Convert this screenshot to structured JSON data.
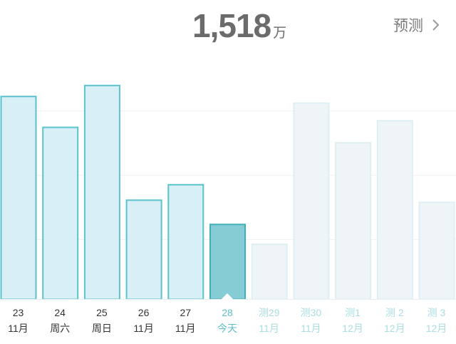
{
  "header": {
    "total_value": "1,518",
    "total_unit": "万",
    "forecast_label": "预测"
  },
  "colors": {
    "past_fill": "#d8eff6",
    "past_stroke": "#5cc2cc",
    "today_fill": "#86ccd4",
    "today_stroke": "#3fb0ba",
    "forecast_fill": "#eff5f7",
    "forecast_stroke": "#ddeff3",
    "grid": "#eef2f3"
  },
  "chart_data": {
    "type": "bar",
    "title": "",
    "xlabel": "",
    "ylabel": "",
    "ylim": [
      0,
      100
    ],
    "categories": [
      {
        "line1": "23",
        "line2": "11月",
        "value": 92,
        "kind": "past"
      },
      {
        "line1": "24",
        "line2": "周六",
        "value": 78,
        "kind": "past"
      },
      {
        "line1": "25",
        "line2": "周日",
        "value": 97,
        "kind": "past"
      },
      {
        "line1": "26",
        "line2": "11月",
        "value": 45,
        "kind": "past"
      },
      {
        "line1": "27",
        "line2": "11月",
        "value": 52,
        "kind": "past"
      },
      {
        "line1": "28",
        "line2": "今天",
        "value": 34,
        "kind": "today"
      },
      {
        "line1": "测29",
        "line2": "11月",
        "value": 25,
        "kind": "forecast"
      },
      {
        "line1": "测30",
        "line2": "11月",
        "value": 89,
        "kind": "forecast"
      },
      {
        "line1": "测1",
        "line2": "12月",
        "value": 71,
        "kind": "forecast"
      },
      {
        "line1": "测 2",
        "line2": "12月",
        "value": 81,
        "kind": "forecast"
      },
      {
        "line1": "测 3",
        "line2": "12月",
        "value": 44,
        "kind": "forecast"
      }
    ],
    "grid": true
  }
}
